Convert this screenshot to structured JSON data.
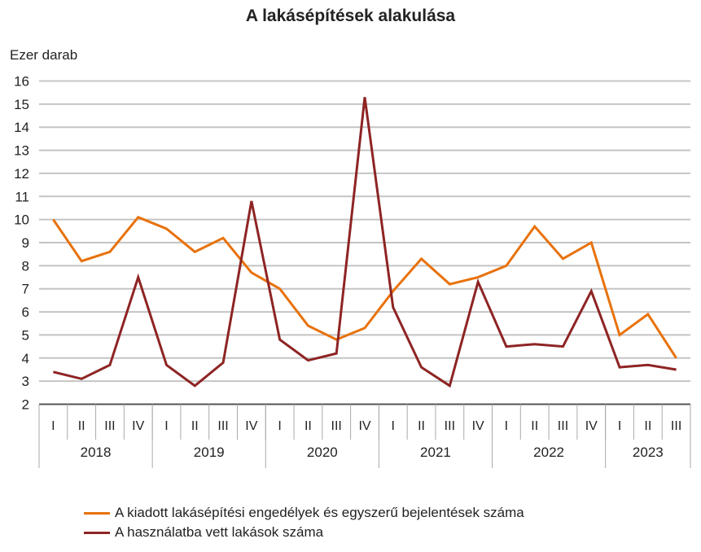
{
  "chart_data": {
    "type": "line",
    "title": "A lakásépítések alakulása",
    "ylabel": "Ezer darab",
    "xlabel": "",
    "ylim": [
      2,
      16
    ],
    "yticks": [
      2,
      3,
      4,
      5,
      6,
      7,
      8,
      9,
      10,
      11,
      12,
      13,
      14,
      15,
      16
    ],
    "grid": true,
    "legend_position": "bottom",
    "quarters": [
      "I",
      "II",
      "III",
      "IV",
      "I",
      "II",
      "III",
      "IV",
      "I",
      "II",
      "III",
      "IV",
      "I",
      "II",
      "III",
      "IV",
      "I",
      "II",
      "III",
      "IV",
      "I",
      "II",
      "III"
    ],
    "years": [
      {
        "label": "2018",
        "count": 4
      },
      {
        "label": "2019",
        "count": 4
      },
      {
        "label": "2020",
        "count": 4
      },
      {
        "label": "2021",
        "count": 4
      },
      {
        "label": "2022",
        "count": 4
      },
      {
        "label": "2023",
        "count": 3
      }
    ],
    "series": [
      {
        "name": "A kiadott lakásépítési engedélyek és egyszerű bejelentések száma",
        "color": "#E8720C",
        "values": [
          10.0,
          8.2,
          8.6,
          10.1,
          9.6,
          8.6,
          9.2,
          7.7,
          7.0,
          5.4,
          4.8,
          5.3,
          6.9,
          8.3,
          7.2,
          7.5,
          8.0,
          9.7,
          8.3,
          9.0,
          5.0,
          5.9,
          4.0
        ]
      },
      {
        "name": "A használatba vett lakások száma",
        "color": "#8E2424",
        "values": [
          3.4,
          3.1,
          3.7,
          7.5,
          3.7,
          2.8,
          3.8,
          10.8,
          4.8,
          3.9,
          4.2,
          15.3,
          6.2,
          3.6,
          2.8,
          7.3,
          4.5,
          4.6,
          4.5,
          6.9,
          3.6,
          3.7,
          3.5
        ]
      }
    ]
  }
}
